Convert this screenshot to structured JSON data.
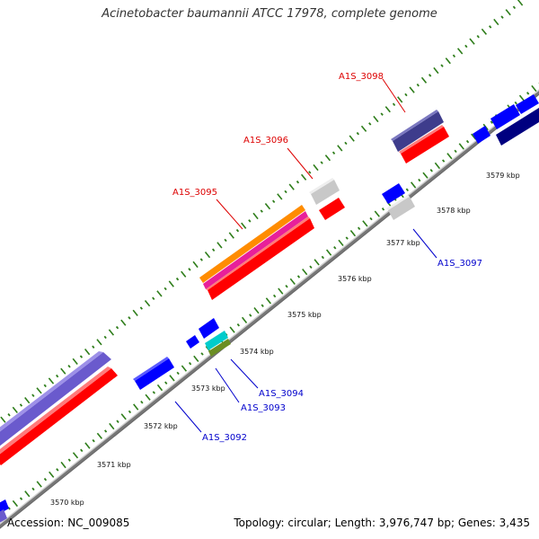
{
  "title": "Acinetobacter baumannii ATCC 17978, complete genome",
  "footer": {
    "accession": "Accession: NC_009085",
    "topology": "Topology: circular; Length: 3,976,747 bp; Genes: 3,435"
  },
  "colors": {
    "backbone": "#888888",
    "tick": "#2e7d1a",
    "forward_label": "#dd0000",
    "reverse_label": "#0000cc",
    "cds": "#ff0000",
    "gene_blue": "#0000ff",
    "gene_navy": "#000080",
    "gene_slate": "#3e3c8c",
    "gene_lavender": "#6a5acd",
    "gene_orange": "#ff8c00",
    "gene_pink": "#e8209a",
    "gene_grey": "#c8c8c8",
    "gene_cyan": "#00cccc",
    "gene_olive": "#6b8e23"
  },
  "scale_labels": [
    "3570 kbp",
    "3571 kbp",
    "3572 kbp",
    "3573 kbp",
    "3574 kbp",
    "3575 kbp",
    "3576 kbp",
    "3577 kbp",
    "3578 kbp",
    "3579 kbp"
  ],
  "gene_labels": {
    "forward": [
      "A1S_3095",
      "A1S_3096",
      "A1S_3098"
    ],
    "reverse": [
      "A1S_3092",
      "A1S_3093",
      "A1S_3094",
      "A1S_3097"
    ]
  }
}
